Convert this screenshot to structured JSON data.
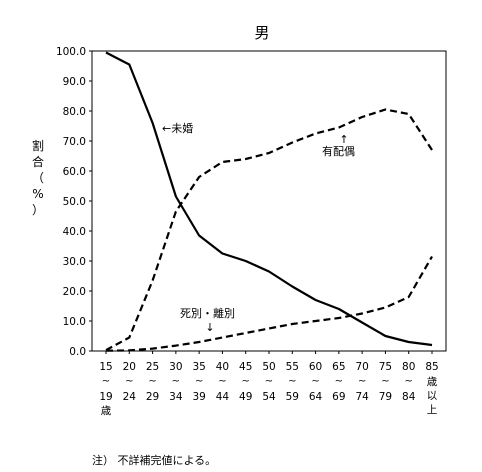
{
  "chart_data": {
    "type": "line",
    "title": "男",
    "ylabel_chars": [
      "割",
      "合",
      "（",
      "%",
      "）"
    ],
    "ylim": [
      0,
      100
    ],
    "yticks": [
      "0.0",
      "10.0",
      "20.0",
      "30.0",
      "40.0",
      "50.0",
      "60.0",
      "70.0",
      "80.0",
      "90.0",
      "100.0"
    ],
    "categories": [
      {
        "top": "15",
        "bottom": "19",
        "suffix": "歳"
      },
      {
        "top": "20",
        "bottom": "24"
      },
      {
        "top": "25",
        "bottom": "29"
      },
      {
        "top": "30",
        "bottom": "34"
      },
      {
        "top": "35",
        "bottom": "39"
      },
      {
        "top": "40",
        "bottom": "44"
      },
      {
        "top": "45",
        "bottom": "49"
      },
      {
        "top": "50",
        "bottom": "54"
      },
      {
        "top": "55",
        "bottom": "59"
      },
      {
        "top": "60",
        "bottom": "64"
      },
      {
        "top": "65",
        "bottom": "69"
      },
      {
        "top": "70",
        "bottom": "74"
      },
      {
        "top": "75",
        "bottom": "79"
      },
      {
        "top": "80",
        "bottom": "84"
      },
      {
        "top": "85",
        "stack": [
          "歳",
          "以",
          "上"
        ]
      }
    ],
    "tilde": "~",
    "series": [
      {
        "name": "←未婚",
        "style": "solid",
        "values": [
          99.5,
          95.5,
          76.0,
          51.5,
          38.5,
          32.5,
          30.0,
          26.5,
          21.5,
          17.0,
          14.0,
          9.5,
          5.0,
          3.0,
          2.0
        ]
      },
      {
        "name": "有配偶",
        "arrow": "↑",
        "style": "dashed",
        "values": [
          0.3,
          4.5,
          23.5,
          46.5,
          58.0,
          63.0,
          64.0,
          66.0,
          69.5,
          72.5,
          74.5,
          78.0,
          80.5,
          79.0,
          67.0
        ]
      },
      {
        "name": "死別・離別",
        "arrow": "↓",
        "style": "dashed",
        "values": [
          0.1,
          0.2,
          0.8,
          1.8,
          3.0,
          4.5,
          6.0,
          7.5,
          9.0,
          10.0,
          11.0,
          12.5,
          14.5,
          18.0,
          31.5
        ]
      }
    ],
    "note": "注） 不詳補完値による。"
  }
}
